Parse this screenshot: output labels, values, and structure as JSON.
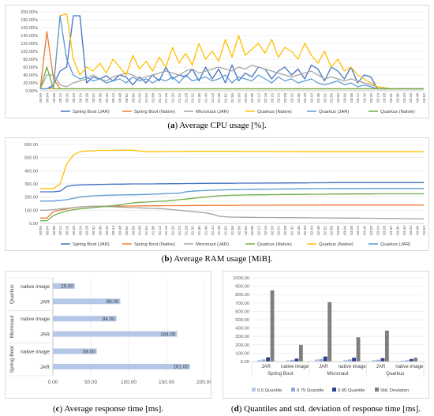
{
  "chart_data": [
    {
      "type": "line",
      "panel_label": "a",
      "caption": "Average CPU usage [%].",
      "ylim": [
        0,
        200
      ],
      "y_ticks": [
        "0.00%",
        "20.00%",
        "40.00%",
        "60.00%",
        "80.00%",
        "100.00%",
        "120.00%",
        "140.00%",
        "160.00%",
        "180.00%",
        "200.00%"
      ],
      "x_ticks": [
        "00:00",
        "00:04",
        "00:08",
        "00:12",
        "00:16",
        "00:20",
        "00:24",
        "00:28",
        "00:32",
        "00:36",
        "00:40",
        "00:44",
        "00:48",
        "00:52",
        "00:56",
        "01:00",
        "01:04",
        "01:08",
        "01:12",
        "01:16",
        "01:20",
        "01:24",
        "01:28",
        "01:32",
        "01:36",
        "01:40",
        "01:44",
        "01:48",
        "01:52",
        "01:56",
        "02:00",
        "02:04",
        "02:08",
        "02:12",
        "02:16",
        "02:20",
        "02:24",
        "02:28",
        "02:32",
        "02:36",
        "02:40",
        "02:44",
        "02:48",
        "02:52",
        "02:56",
        "03:00",
        "03:04",
        "03:08",
        "03:12",
        "03:16",
        "03:20",
        "03:24",
        "03:28",
        "03:32",
        "03:36",
        "03:40",
        "03:44",
        "03:48",
        "03:52"
      ],
      "grid": true,
      "legend_position": "bottom",
      "series": [
        {
          "name": "Spring Boot (JAR)",
          "color": "#4472c4",
          "values": [
            5,
            5,
            15,
            50,
            60,
            190,
            190,
            20,
            35,
            30,
            38,
            25,
            40,
            35,
            15,
            35,
            20,
            40,
            25,
            60,
            30,
            40,
            35,
            55,
            25,
            60,
            30,
            55,
            20,
            65,
            25,
            45,
            35,
            60,
            55,
            30,
            50,
            60,
            40,
            55,
            30,
            65,
            55,
            25,
            60,
            50,
            30,
            60,
            20,
            40,
            35,
            5,
            5,
            5,
            5,
            5,
            5,
            5,
            5
          ]
        },
        {
          "name": "Spring Boot (Native)",
          "color": "#ed7d31",
          "values": [
            5,
            150,
            30,
            5,
            5,
            5,
            5,
            5,
            5,
            5,
            5,
            5,
            5,
            5,
            5,
            5,
            5,
            5,
            5,
            5,
            5,
            5,
            5,
            5,
            5,
            5,
            5,
            5,
            5,
            5,
            5,
            5,
            5,
            5,
            5,
            5,
            5,
            5,
            5,
            5,
            5,
            5,
            5,
            5,
            5,
            5,
            5,
            5,
            5,
            5,
            5,
            5,
            5,
            5,
            5,
            5,
            5,
            5,
            5
          ]
        },
        {
          "name": "Micronaut (JAR)",
          "color": "#a5a5a5",
          "values": [
            5,
            40,
            40,
            15,
            10,
            20,
            25,
            30,
            40,
            30,
            25,
            35,
            40,
            45,
            40,
            30,
            35,
            40,
            45,
            50,
            45,
            40,
            50,
            55,
            45,
            50,
            55,
            60,
            55,
            50,
            60,
            55,
            65,
            60,
            55,
            50,
            45,
            40,
            35,
            40,
            45,
            50,
            40,
            30,
            35,
            30,
            25,
            30,
            25,
            20,
            15,
            10,
            8,
            5,
            5,
            5,
            5,
            5,
            5
          ]
        },
        {
          "name": "Quarkus (Native)",
          "color": "#ffc000",
          "values": [
            5,
            5,
            5,
            190,
            195,
            80,
            40,
            60,
            50,
            70,
            45,
            80,
            60,
            40,
            90,
            55,
            75,
            50,
            85,
            60,
            110,
            70,
            95,
            65,
            120,
            80,
            100,
            75,
            130,
            85,
            140,
            90,
            105,
            120,
            95,
            130,
            85,
            110,
            100,
            80,
            120,
            90,
            70,
            100,
            60,
            80,
            50,
            60,
            40,
            30,
            20,
            10,
            8,
            5,
            5,
            5,
            5,
            5,
            5
          ]
        },
        {
          "name": "Quarkus (JAR)",
          "color": "#5b9bd5",
          "values": [
            5,
            5,
            10,
            190,
            80,
            40,
            30,
            35,
            25,
            30,
            20,
            25,
            30,
            20,
            35,
            25,
            30,
            20,
            30,
            25,
            35,
            20,
            40,
            25,
            30,
            35,
            25,
            30,
            40,
            20,
            35,
            30,
            25,
            40,
            30,
            20,
            35,
            25,
            30,
            20,
            25,
            30,
            20,
            15,
            20,
            25,
            15,
            20,
            10,
            15,
            10,
            5,
            5,
            5,
            5,
            5,
            5,
            5,
            5
          ]
        },
        {
          "name": "Quarkus (Natvie)",
          "color": "#70ad47",
          "values": [
            5,
            60,
            5,
            5,
            5,
            5,
            5,
            5,
            5,
            5,
            5,
            5,
            5,
            5,
            5,
            5,
            5,
            5,
            5,
            5,
            5,
            5,
            5,
            5,
            5,
            5,
            5,
            5,
            5,
            5,
            5,
            5,
            5,
            5,
            5,
            5,
            5,
            5,
            5,
            5,
            5,
            5,
            5,
            5,
            5,
            5,
            5,
            5,
            5,
            5,
            5,
            5,
            5,
            5,
            5,
            5,
            5,
            5,
            5
          ]
        }
      ]
    },
    {
      "type": "line",
      "panel_label": "b",
      "caption": "Average RAM usage [MiB].",
      "ylim": [
        0,
        600
      ],
      "y_ticks": [
        "0.00",
        "100.00",
        "200.00",
        "300.00",
        "400.00",
        "500.00",
        "600.00"
      ],
      "x_ticks": [
        "00:00",
        "00:04",
        "00:08",
        "00:12",
        "00:16",
        "00:20",
        "00:24",
        "00:28",
        "00:32",
        "00:36",
        "00:40",
        "00:44",
        "00:48",
        "00:52",
        "00:56",
        "01:00",
        "01:04",
        "01:08",
        "01:12",
        "01:16",
        "01:20",
        "01:24",
        "01:28",
        "01:32",
        "01:36",
        "01:40",
        "01:44",
        "01:48",
        "01:52",
        "01:56",
        "02:00",
        "02:04",
        "02:08",
        "02:12",
        "02:16",
        "02:20",
        "02:24",
        "02:28",
        "02:32",
        "02:36",
        "02:40",
        "02:44",
        "02:48",
        "02:52",
        "02:56",
        "03:00",
        "03:04",
        "03:08",
        "03:12",
        "03:16",
        "03:20",
        "03:24",
        "03:28",
        "03:32",
        "03:36",
        "03:40",
        "03:44",
        "03:48",
        "03:52"
      ],
      "grid": true,
      "legend_position": "bottom",
      "series": [
        {
          "name": "Spring Boot (JAR)",
          "color": "#4472c4",
          "values": [
            240,
            240,
            240,
            245,
            280,
            290,
            292,
            294,
            295,
            296,
            297,
            298,
            298,
            299,
            300,
            300,
            300,
            300,
            301,
            301,
            302,
            302,
            303,
            303,
            304,
            304,
            305,
            305,
            305,
            305,
            306,
            306,
            306,
            306,
            307,
            307,
            307,
            307,
            308,
            308,
            308,
            309,
            309,
            309,
            310,
            310,
            310,
            310,
            310,
            310,
            310,
            310,
            310,
            310,
            310,
            310,
            310,
            310,
            310
          ]
        },
        {
          "name": "Spring Boot (Native)",
          "color": "#ed7d31",
          "values": [
            40,
            40,
            90,
            100,
            110,
            120,
            125,
            128,
            130,
            130,
            130,
            131,
            131,
            132,
            132,
            133,
            133,
            134,
            134,
            135,
            135,
            135,
            135,
            136,
            136,
            136,
            137,
            137,
            137,
            137,
            138,
            138,
            138,
            138,
            138,
            138,
            139,
            139,
            139,
            139,
            139,
            139,
            140,
            140,
            140,
            140,
            140,
            140,
            140,
            140,
            140,
            140,
            140,
            140,
            140,
            140,
            140,
            140,
            140
          ]
        },
        {
          "name": "Micronaut (JAR)",
          "color": "#a5a5a5",
          "values": [
            100,
            100,
            105,
            110,
            115,
            120,
            125,
            128,
            130,
            130,
            128,
            126,
            124,
            122,
            120,
            118,
            116,
            114,
            112,
            110,
            105,
            100,
            95,
            90,
            85,
            80,
            70,
            55,
            50,
            48,
            47,
            46,
            46,
            45,
            45,
            45,
            44,
            44,
            44,
            43,
            43,
            42,
            42,
            42,
            41,
            41,
            40,
            40,
            40,
            39,
            39,
            38,
            38,
            37,
            37,
            36,
            36,
            35,
            35
          ]
        },
        {
          "name": "Quarkus (JAR)",
          "color": "#5b9bd5",
          "values": [
            170,
            170,
            170,
            175,
            180,
            190,
            200,
            205,
            210,
            212,
            214,
            215,
            216,
            217,
            218,
            219,
            220,
            222,
            224,
            226,
            228,
            230,
            240,
            245,
            248,
            250,
            252,
            254,
            255,
            256,
            257,
            258,
            259,
            260,
            260,
            261,
            261,
            262,
            262,
            263,
            263,
            264,
            264,
            264,
            265,
            265,
            265,
            265,
            265,
            266,
            266,
            266,
            266,
            266,
            266,
            266,
            266,
            266,
            266
          ]
        },
        {
          "name": "Quarkus (Natvie)",
          "color": "#70ad47",
          "values": [
            20,
            20,
            60,
            80,
            95,
            105,
            110,
            115,
            120,
            125,
            130,
            135,
            140,
            150,
            155,
            160,
            162,
            165,
            168,
            170,
            175,
            180,
            185,
            190,
            195,
            200,
            205,
            210,
            212,
            214,
            215,
            216,
            217,
            218,
            218,
            219,
            219,
            220,
            220,
            221,
            221,
            222,
            222,
            222,
            223,
            223,
            223,
            224,
            224,
            224,
            224,
            225,
            225,
            225,
            225,
            225,
            225,
            225,
            225
          ]
        },
        {
          "name": "Quarkus (Native)",
          "color": "#ffc000",
          "values": [
            265,
            265,
            265,
            300,
            450,
            520,
            545,
            550,
            552,
            555,
            555,
            555,
            556,
            556,
            556,
            550,
            545,
            545,
            546,
            546,
            547,
            547,
            547,
            548,
            548,
            548,
            548,
            548,
            548,
            548,
            547,
            547,
            547,
            547,
            547,
            546,
            546,
            546,
            546,
            546,
            545,
            545,
            545,
            545,
            545,
            545,
            545,
            545,
            545,
            545,
            545,
            545,
            545,
            545,
            545,
            545,
            545,
            545,
            545
          ]
        }
      ]
    },
    {
      "type": "bar",
      "orientation": "horizontal",
      "panel_label": "c",
      "caption": "Average response time [ms].",
      "xlim": [
        0,
        200
      ],
      "x_ticks": [
        "0.00",
        "50.00",
        "100.00",
        "150.00",
        "200.00"
      ],
      "color": "#b4c7e7",
      "groups": [
        {
          "name": "Quarkus",
          "bars": [
            {
              "label": "native image",
              "value": 29.0,
              "value_label": "29.00"
            },
            {
              "label": "JAR",
              "value": 89.0,
              "value_label": "89.00"
            }
          ]
        },
        {
          "name": "Micronaut",
          "bars": [
            {
              "label": "native image",
              "value": 84.0,
              "value_label": "84.00"
            },
            {
              "label": "JAR",
              "value": 164.0,
              "value_label": "164.00"
            }
          ]
        },
        {
          "name": "Spring Boot",
          "bars": [
            {
              "label": "native image",
              "value": 58.0,
              "value_label": "58.00"
            },
            {
              "label": "JAR",
              "value": 181.0,
              "value_label": "181.00"
            }
          ]
        }
      ]
    },
    {
      "type": "bar",
      "panel_label": "d",
      "caption": "Quantiles and std. deviation of response time [ms].",
      "ylim": [
        0,
        1000
      ],
      "y_ticks": [
        "0.00",
        "100.00",
        "200.00",
        "300.00",
        "400.00",
        "500.00",
        "600.00",
        "700.00",
        "800.00",
        "900.00",
        "1000.00"
      ],
      "groups": [
        {
          "name": "Spring Boot",
          "categories": [
            "JAR",
            "native image"
          ]
        },
        {
          "name": "Micronaut",
          "categories": [
            "JAR",
            "native image"
          ]
        },
        {
          "name": "Quarkus",
          "categories": [
            "JAR",
            "native image"
          ]
        }
      ],
      "legend_position": "bottom",
      "series": [
        {
          "name": "0.5 Quantile",
          "color": "#b4c7e7",
          "values": [
            20,
            15,
            25,
            20,
            18,
            12
          ]
        },
        {
          "name": "0.75 Quantile",
          "color": "#8faadc",
          "values": [
            25,
            20,
            30,
            25,
            22,
            15
          ]
        },
        {
          "name": "0.95 Quantile",
          "color": "#2f3e8c",
          "values": [
            50,
            35,
            60,
            45,
            40,
            30
          ]
        },
        {
          "name": "Std. Deviation",
          "color": "#7f7f7f",
          "values": [
            850,
            200,
            710,
            290,
            370,
            45
          ]
        }
      ]
    }
  ]
}
